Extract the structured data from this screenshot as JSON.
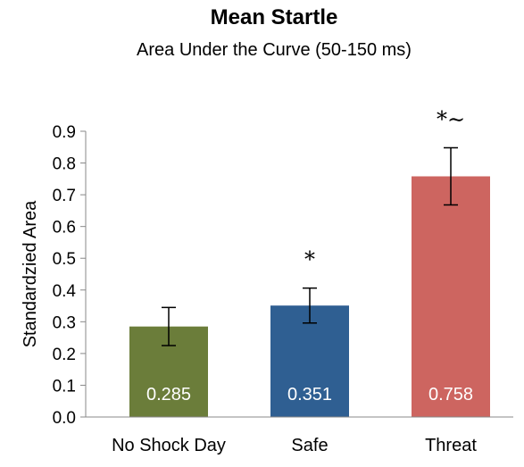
{
  "chart_data": {
    "type": "bar",
    "title": "Mean Startle",
    "subtitle": "Area Under the Curve (50-150 ms)",
    "ylabel": "Standardzied Area",
    "xlabel": "",
    "ylim": [
      0,
      0.9
    ],
    "yticks": [
      "0.0",
      "0.1",
      "0.2",
      "0.3",
      "0.4",
      "0.5",
      "0.6",
      "0.7",
      "0.8",
      "0.9"
    ],
    "grid": false,
    "categories": [
      "No Shock Day",
      "Safe",
      "Threat"
    ],
    "values": [
      0.285,
      0.351,
      0.758
    ],
    "value_labels": [
      "0.285",
      "0.351",
      "0.758"
    ],
    "error": [
      0.06,
      0.055,
      0.09
    ],
    "colors": [
      "#6b7d3a",
      "#2f5f92",
      "#cd6560"
    ],
    "annotations": [
      "",
      "*",
      "*∼"
    ]
  }
}
